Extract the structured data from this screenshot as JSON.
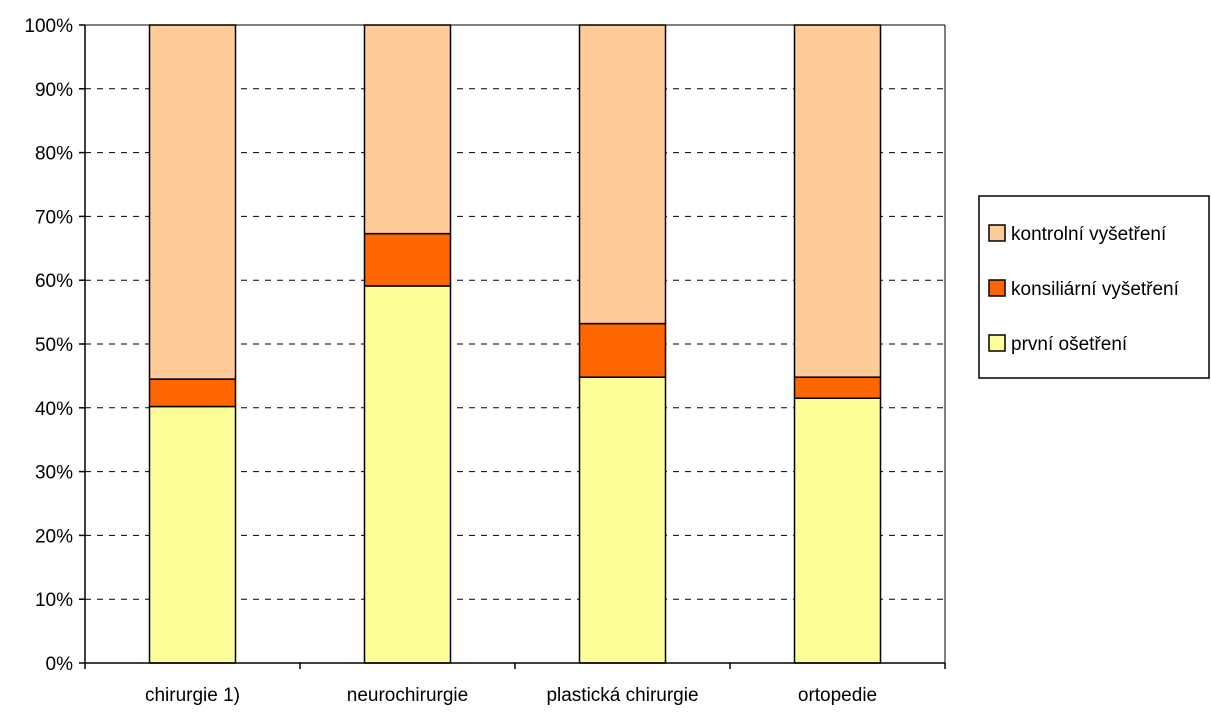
{
  "chart_data": {
    "type": "bar",
    "stacked": "percent",
    "categories": [
      "chirurgie 1)",
      "neurochirurgie",
      "plastická chirurgie",
      "ortopedie"
    ],
    "series": [
      {
        "name": "první ošetření",
        "values": [
          40.2,
          59.1,
          44.8,
          41.5
        ],
        "color": "#FFFF99"
      },
      {
        "name": "konsiliární vyšetření",
        "values": [
          4.3,
          8.2,
          8.4,
          3.3
        ],
        "color": "#FF6600"
      },
      {
        "name": "kontrolní vyšetření",
        "values": [
          55.5,
          32.7,
          46.8,
          55.2
        ],
        "color": "#FFCC99"
      }
    ],
    "y_ticks": [
      "0%",
      "10%",
      "20%",
      "30%",
      "40%",
      "50%",
      "60%",
      "70%",
      "80%",
      "90%",
      "100%"
    ],
    "ylim": [
      0,
      100
    ],
    "grid": "horizontal-dashed",
    "legend_position": "right",
    "legend_order": [
      "kontrolní vyšetření",
      "konsiliární vyšetření",
      "první ošetření"
    ],
    "title": "",
    "xlabel": "",
    "ylabel": ""
  }
}
